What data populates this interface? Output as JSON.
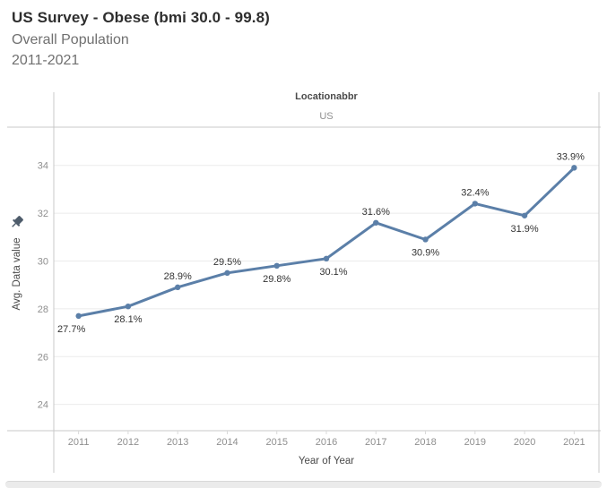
{
  "chart_data": {
    "type": "line",
    "title": "US Survey - Obese (bmi 30.0 - 99.8)",
    "subtitle": "Overall Population",
    "subtitle_range": "2011-2021",
    "column_header": {
      "field": "Locationabbr",
      "value": "US"
    },
    "x": [
      "2011",
      "2012",
      "2013",
      "2014",
      "2015",
      "2016",
      "2017",
      "2018",
      "2019",
      "2020",
      "2021"
    ],
    "series": [
      {
        "name": "Avg. Data value",
        "values": [
          27.7,
          28.1,
          28.9,
          29.5,
          29.8,
          30.1,
          31.6,
          30.9,
          32.4,
          31.9,
          33.9
        ]
      }
    ],
    "data_labels": [
      "27.7%",
      "28.1%",
      "28.9%",
      "29.5%",
      "29.8%",
      "30.1%",
      "31.6%",
      "30.9%",
      "32.4%",
      "31.9%",
      "33.9%"
    ],
    "label_positions": [
      "below",
      "below",
      "above",
      "above",
      "below",
      "below",
      "above",
      "below",
      "above",
      "below",
      "above"
    ],
    "label_dx": [
      -8,
      0,
      0,
      0,
      0,
      8,
      0,
      0,
      0,
      0,
      -4
    ],
    "xlabel": "Year of Year",
    "ylabel": "Avg. Data value",
    "y_ticks": [
      24,
      26,
      28,
      30,
      32,
      34
    ],
    "ylim": [
      22.9,
      35.6
    ],
    "grid": true,
    "legend": "none",
    "colors": {
      "line": "#5b7fa8",
      "marker": "#5b7fa8",
      "data_label": "#333333",
      "tick_label": "#8f8f8f",
      "grid": "#ebebeb",
      "border": "#c9c9c9",
      "tick_mark": "#d9d9d9",
      "pin": "#4e5c6b"
    }
  }
}
